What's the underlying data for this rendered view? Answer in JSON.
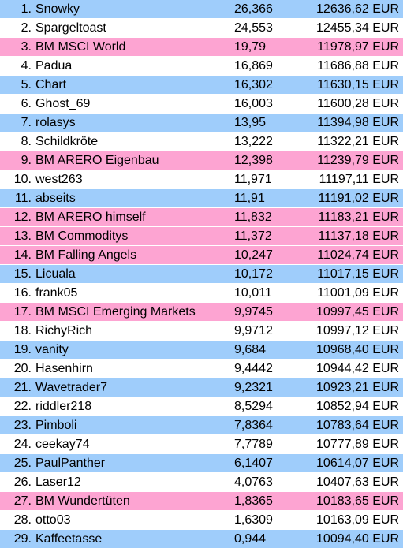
{
  "colors": {
    "blue": "#9fcdfb",
    "white": "#ffffff",
    "pink": "#fda4d2"
  },
  "rows": [
    {
      "rank": "1.",
      "name": "Snowky",
      "performance": "26,366",
      "value": "12636,62 EUR",
      "color": "blue"
    },
    {
      "rank": "2.",
      "name": "Spargeltoast",
      "performance": "24,553",
      "value": "12455,34 EUR",
      "color": "white"
    },
    {
      "rank": "3.",
      "name": "BM MSCI World",
      "performance": "19,79",
      "value": "11978,97 EUR",
      "color": "pink"
    },
    {
      "rank": "4.",
      "name": "Padua",
      "performance": "16,869",
      "value": "11686,88 EUR",
      "color": "white"
    },
    {
      "rank": "5.",
      "name": "Chart",
      "performance": "16,302",
      "value": "11630,15 EUR",
      "color": "blue"
    },
    {
      "rank": "6.",
      "name": "Ghost_69",
      "performance": "16,003",
      "value": "11600,28 EUR",
      "color": "white"
    },
    {
      "rank": "7.",
      "name": "rolasys",
      "performance": "13,95",
      "value": "11394,98 EUR",
      "color": "blue"
    },
    {
      "rank": "8.",
      "name": "Schildkröte",
      "performance": "13,222",
      "value": "11322,21 EUR",
      "color": "white"
    },
    {
      "rank": "9.",
      "name": "BM ARERO Eigenbau",
      "performance": "12,398",
      "value": "11239,79 EUR",
      "color": "pink"
    },
    {
      "rank": "10.",
      "name": "west263",
      "performance": "11,971",
      "value": "11197,11 EUR",
      "color": "white"
    },
    {
      "rank": "11.",
      "name": "abseits",
      "performance": "11,91",
      "value": "11191,02 EUR",
      "color": "blue"
    },
    {
      "rank": "12.",
      "name": "BM ARERO himself",
      "performance": "11,832",
      "value": "11183,21 EUR",
      "color": "pink"
    },
    {
      "rank": "13.",
      "name": "BM Commoditys",
      "performance": "11,372",
      "value": "11137,18 EUR",
      "color": "pink"
    },
    {
      "rank": "14.",
      "name": "BM Falling Angels",
      "performance": "10,247",
      "value": "11024,74 EUR",
      "color": "pink"
    },
    {
      "rank": "15.",
      "name": "Licuala",
      "performance": "10,172",
      "value": "11017,15 EUR",
      "color": "blue"
    },
    {
      "rank": "16.",
      "name": "frank05",
      "performance": "10,011",
      "value": "11001,09 EUR",
      "color": "white"
    },
    {
      "rank": "17.",
      "name": "BM MSCI Emerging Markets",
      "performance": "9,9745",
      "value": "10997,45 EUR",
      "color": "pink"
    },
    {
      "rank": "18.",
      "name": "RichyRich",
      "performance": "9,9712",
      "value": "10997,12 EUR",
      "color": "white"
    },
    {
      "rank": "19.",
      "name": "vanity",
      "performance": "9,684",
      "value": "10968,40 EUR",
      "color": "blue"
    },
    {
      "rank": "20.",
      "name": "Hasenhirn",
      "performance": "9,4442",
      "value": "10944,42 EUR",
      "color": "white"
    },
    {
      "rank": "21.",
      "name": "Wavetrader7",
      "performance": "9,2321",
      "value": "10923,21 EUR",
      "color": "blue"
    },
    {
      "rank": "22.",
      "name": "riddler218",
      "performance": "8,5294",
      "value": "10852,94 EUR",
      "color": "white"
    },
    {
      "rank": "23.",
      "name": "Pimboli",
      "performance": "7,8364",
      "value": "10783,64 EUR",
      "color": "blue"
    },
    {
      "rank": "24.",
      "name": "ceekay74",
      "performance": "7,7789",
      "value": "10777,89 EUR",
      "color": "white"
    },
    {
      "rank": "25.",
      "name": "PaulPanther",
      "performance": "6,1407",
      "value": "10614,07 EUR",
      "color": "blue"
    },
    {
      "rank": "26.",
      "name": "Laser12",
      "performance": "4,0763",
      "value": "10407,63 EUR",
      "color": "white"
    },
    {
      "rank": "27.",
      "name": "BM Wundertüten",
      "performance": "1,8365",
      "value": "10183,65 EUR",
      "color": "pink"
    },
    {
      "rank": "28.",
      "name": "otto03",
      "performance": "1,6309",
      "value": "10163,09 EUR",
      "color": "white"
    },
    {
      "rank": "29.",
      "name": "Kaffeetasse",
      "performance": "0,944",
      "value": "10094,40 EUR",
      "color": "blue"
    }
  ]
}
